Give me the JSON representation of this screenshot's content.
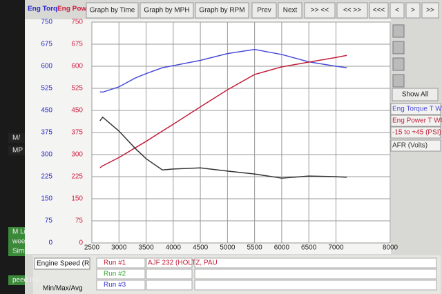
{
  "toolbar": {
    "axis_labels": [
      "Eng Torq",
      "Eng Pow"
    ],
    "buttons": [
      "Graph by Time",
      "Graph by MPH",
      "Graph by RPM",
      "Prev",
      "Next",
      ">> <<",
      "<< >>",
      "<<<",
      "<",
      ">",
      ">>"
    ]
  },
  "chart_data": {
    "type": "line",
    "x": [
      2650,
      2700,
      3000,
      3300,
      3500,
      3800,
      4000,
      4500,
      5000,
      5500,
      6000,
      6500,
      7000,
      7200
    ],
    "series": [
      {
        "name": "Eng Torque T W(",
        "color": "#4a4ad8",
        "axis": "y",
        "values": [
          513,
          512,
          530,
          560,
          575,
          595,
          602,
          620,
          643,
          657,
          640,
          615,
          600,
          595
        ]
      },
      {
        "name": "Eng Power T WC",
        "color": "#c0203a",
        "axis": "y2",
        "values": [
          255,
          262,
          290,
          323,
          345,
          380,
          403,
          462,
          520,
          572,
          598,
          614,
          630,
          637
        ]
      },
      {
        "name": "AFR (Volts)",
        "color": "#333333",
        "axis": "y",
        "values": [
          415,
          427,
          380,
          321,
          286,
          248,
          251,
          255,
          244,
          234,
          220,
          227,
          225,
          223
        ]
      }
    ],
    "xlim": [
      2500,
      8000
    ],
    "xticks": [
      2500,
      3000,
      3500,
      4000,
      4500,
      5000,
      5500,
      6000,
      6500,
      7000,
      8000
    ],
    "ylim": [
      0,
      750
    ],
    "yticks": [
      0,
      75,
      150,
      225,
      300,
      375,
      450,
      525,
      600,
      675,
      750
    ],
    "y2lim": [
      0,
      750
    ],
    "y2ticks": [
      0,
      75,
      150,
      225,
      300,
      375,
      450,
      525,
      600,
      675,
      750
    ],
    "grid": true
  },
  "side_panel": {
    "button": "Show All",
    "items": [
      "-15 to +45 (PSI)"
    ]
  },
  "footer": {
    "x_label": "Engine Speed (R",
    "runs": [
      {
        "label": "Run #1",
        "name": "AJF 232 (HOLTZ, PAU"
      },
      {
        "label": "Run #2"
      },
      {
        "label": "Run #3"
      }
    ],
    "stats": "Min/Max/Avg"
  },
  "left_edge": [
    "M/",
    "MP",
    "M Li",
    "wee",
    "Simu",
    "peed Ind"
  ]
}
